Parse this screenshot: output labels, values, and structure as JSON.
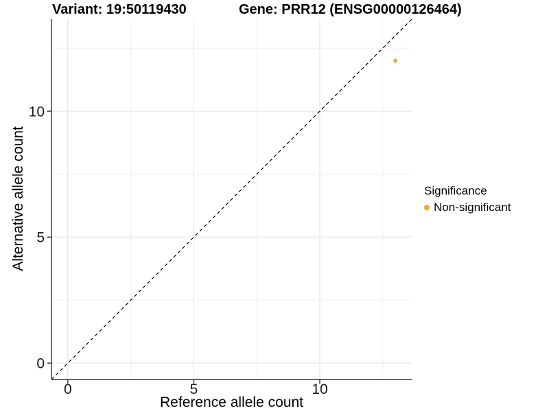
{
  "titles": {
    "variant": "Variant: 19:50119430",
    "gene": "Gene: PRR12 (ENSG00000126464)"
  },
  "chart_data": {
    "type": "scatter",
    "xlabel": "Reference allele count",
    "ylabel": "Alternative allele count",
    "xlim": [
      -0.65,
      13.65
    ],
    "ylim": [
      -0.65,
      13.65
    ],
    "x_major_ticks": [
      0,
      5,
      10
    ],
    "y_major_ticks": [
      0,
      5,
      10
    ],
    "x_minor_ticks": [
      2.5,
      7.5,
      12.5
    ],
    "y_minor_ticks": [
      2.5,
      7.5,
      12.5
    ],
    "grid": true,
    "points": [
      {
        "x": 13,
        "y": 12,
        "series": "Non-significant"
      }
    ],
    "identity_line": {
      "type": "y=x",
      "style": "dashed",
      "from": -0.65,
      "to": 13.65
    },
    "legend": {
      "title": "Significance",
      "position": "right",
      "items": [
        {
          "label": "Non-significant",
          "color": "#F9A432"
        }
      ]
    }
  },
  "colors": {
    "point": "#F9A432",
    "grid_major": "#E2E2E2",
    "grid_minor": "#F0F0F0",
    "axis": "#333333",
    "tick_text": "#1a1a1a",
    "dashed_line": "#000000"
  }
}
